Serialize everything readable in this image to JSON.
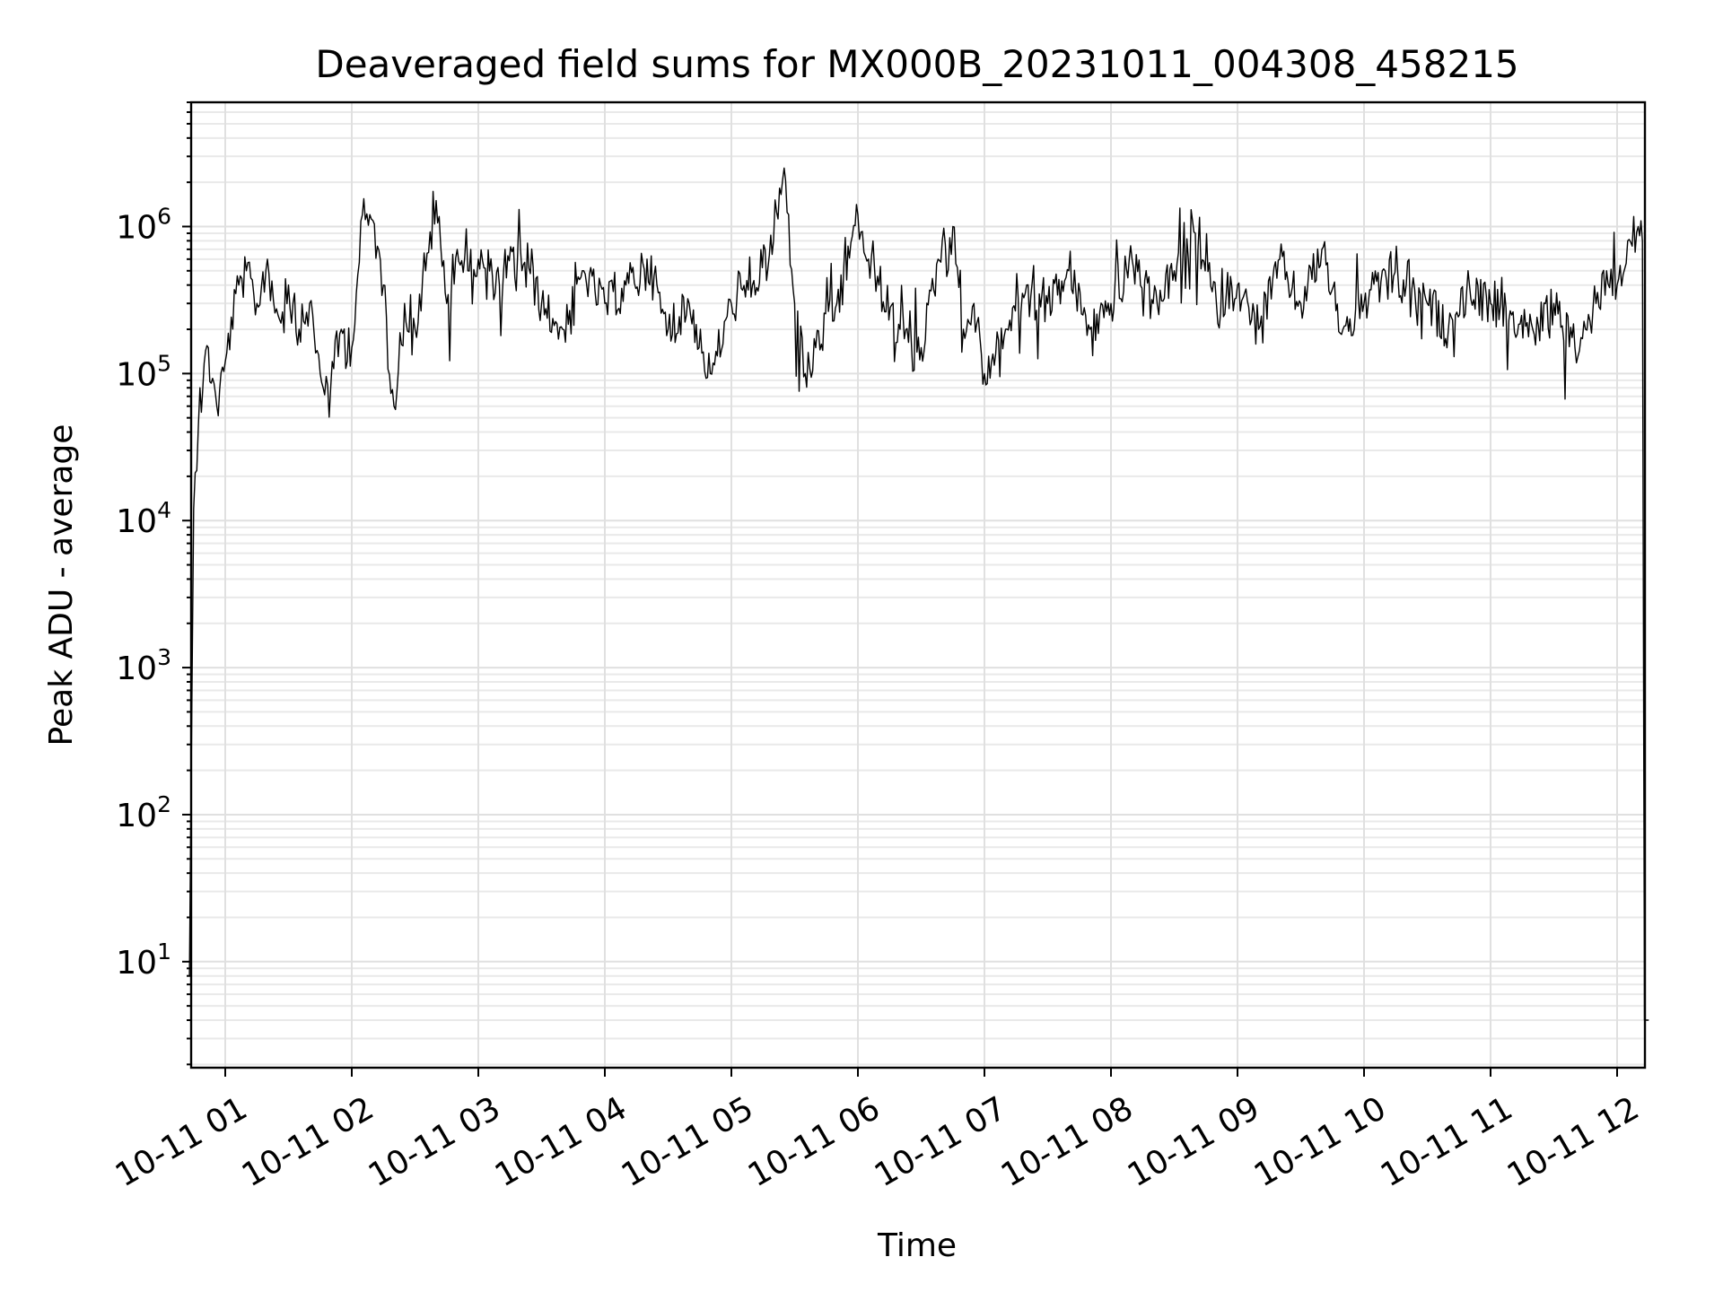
{
  "chart_data": {
    "type": "line",
    "title": "Deaveraged field sums for MX000B_20231011_004308_458215",
    "xlabel": "Time",
    "ylabel": "Peak ADU - average",
    "y_scale": "log",
    "ylim": [
      1.9,
      7000000
    ],
    "xlim": [
      "2023-10-11 00:43",
      "2023-10-11 12:15"
    ],
    "x_ticks": [
      "10-11 01",
      "10-11 02",
      "10-11 03",
      "10-11 04",
      "10-11 05",
      "10-11 06",
      "10-11 07",
      "10-11 08",
      "10-11 09",
      "10-11 10",
      "10-11 11",
      "10-11 12"
    ],
    "y_ticks": [
      {
        "base": "10",
        "exp": "1"
      },
      {
        "base": "10",
        "exp": "2"
      },
      {
        "base": "10",
        "exp": "3"
      },
      {
        "base": "10",
        "exp": "4"
      },
      {
        "base": "10",
        "exp": "5"
      },
      {
        "base": "10",
        "exp": "6"
      }
    ],
    "grid": true,
    "legend": "none",
    "line_color": "#000000",
    "series": [
      {
        "x": [
          "10-11 00:43",
          "10-11 00:45",
          "10-11 00:48",
          "10-11 00:52",
          "10-11 00:56",
          "10-11 01:00",
          "10-11 01:05",
          "10-11 01:10",
          "10-11 01:15",
          "10-11 01:20",
          "10-11 01:25",
          "10-11 01:30",
          "10-11 01:35",
          "10-11 01:40",
          "10-11 01:45",
          "10-11 01:50",
          "10-11 01:55",
          "10-11 02:00",
          "10-11 02:05",
          "10-11 02:10",
          "10-11 02:15",
          "10-11 02:20",
          "10-11 02:25",
          "10-11 02:30",
          "10-11 02:35",
          "10-11 02:40",
          "10-11 02:45",
          "10-11 02:50",
          "10-11 02:55",
          "10-11 03:00",
          "10-11 03:10",
          "10-11 03:20",
          "10-11 03:30",
          "10-11 03:40",
          "10-11 03:50",
          "10-11 04:00",
          "10-11 04:10",
          "10-11 04:20",
          "10-11 04:30",
          "10-11 04:40",
          "10-11 04:50",
          "10-11 05:00",
          "10-11 05:10",
          "10-11 05:20",
          "10-11 05:25",
          "10-11 05:30",
          "10-11 05:35",
          "10-11 05:40",
          "10-11 05:50",
          "10-11 06:00",
          "10-11 06:05",
          "10-11 06:10",
          "10-11 06:20",
          "10-11 06:30",
          "10-11 06:40",
          "10-11 06:45",
          "10-11 06:50",
          "10-11 06:55",
          "10-11 07:00",
          "10-11 07:10",
          "10-11 07:20",
          "10-11 07:30",
          "10-11 07:40",
          "10-11 07:50",
          "10-11 08:00",
          "10-11 08:10",
          "10-11 08:20",
          "10-11 08:30",
          "10-11 08:40",
          "10-11 08:50",
          "10-11 09:00",
          "10-11 09:10",
          "10-11 09:20",
          "10-11 09:30",
          "10-11 09:40",
          "10-11 09:50",
          "10-11 10:00",
          "10-11 10:10",
          "10-11 10:20",
          "10-11 10:30",
          "10-11 10:40",
          "10-11 10:50",
          "10-11 11:00",
          "10-11 11:10",
          "10-11 11:20",
          "10-11 11:30",
          "10-11 11:40",
          "10-11 11:45",
          "10-11 11:50",
          "10-11 11:55",
          "10-11 12:00",
          "10-11 12:05",
          "10-11 12:10",
          "10-11 12:12",
          "10-11 12:13",
          "10-11 12:15"
        ],
        "y": [
          8,
          12000,
          80000,
          150000,
          60000,
          120000,
          350000,
          500000,
          300000,
          600000,
          250000,
          400000,
          200000,
          300000,
          100000,
          80000,
          200000,
          150000,
          1200000,
          1100000,
          400000,
          60000,
          300000,
          200000,
          500000,
          1500000,
          300000,
          700000,
          500000,
          600000,
          400000,
          700000,
          300000,
          200000,
          500000,
          300000,
          400000,
          600000,
          200000,
          300000,
          100000,
          300000,
          400000,
          800000,
          2500000,
          300000,
          100000,
          150000,
          300000,
          1200000,
          600000,
          400000,
          200000,
          150000,
          800000,
          1000000,
          200000,
          300000,
          100000,
          200000,
          400000,
          300000,
          500000,
          200000,
          300000,
          600000,
          300000,
          500000,
          900000,
          300000,
          400000,
          200000,
          600000,
          300000,
          700000,
          200000,
          300000,
          500000,
          400000,
          300000,
          200000,
          400000,
          300000,
          250000,
          200000,
          300000,
          150000,
          200000,
          300000,
          500000,
          400000,
          800000,
          1000000,
          800000,
          4,
          4
        ]
      }
    ]
  }
}
